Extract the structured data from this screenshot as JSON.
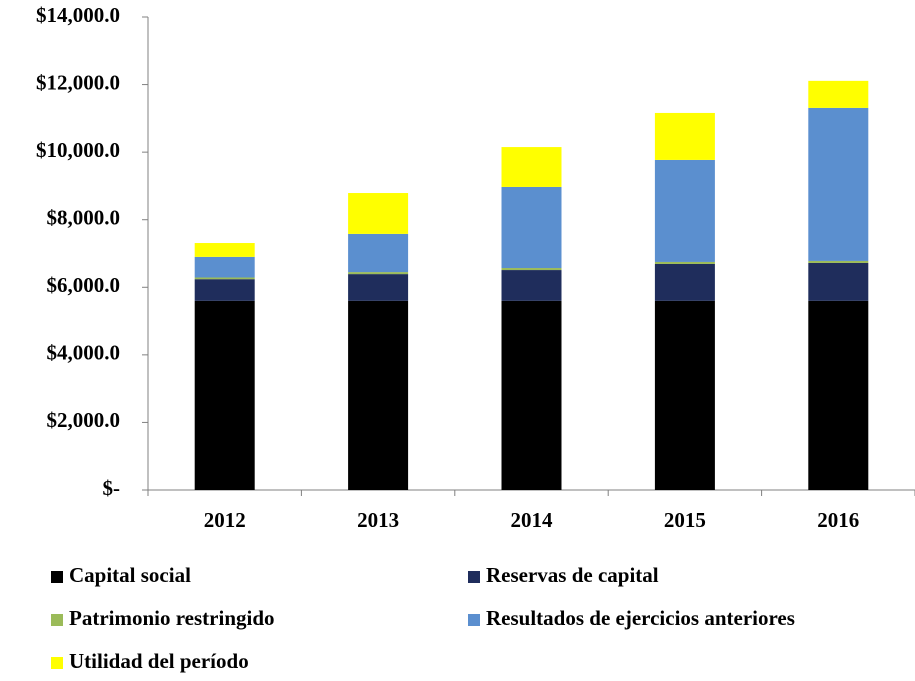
{
  "chart_data": {
    "type": "stacked_bar",
    "categories": [
      "2012",
      "2013",
      "2014",
      "2015",
      "2016"
    ],
    "series": [
      {
        "name": "Capital social",
        "color": "#000000",
        "values": [
          5600,
          5600,
          5600,
          5600,
          5600
        ]
      },
      {
        "name": "Reservas de capital",
        "color": "#1f2d5c",
        "values": [
          640,
          790,
          910,
          1090,
          1120
        ]
      },
      {
        "name": "Patrimonio restringido",
        "color": "#9bbb59",
        "values": [
          50,
          60,
          60,
          60,
          60
        ]
      },
      {
        "name": "Resultados de ejercicios anteriores",
        "color": "#5b8fcf",
        "values": [
          610,
          1130,
          2400,
          3020,
          4530
        ]
      },
      {
        "name": "Utilidad del período",
        "color": "#ffff00",
        "values": [
          410,
          1210,
          1180,
          1390,
          800
        ]
      }
    ],
    "ylim": [
      0,
      14000
    ],
    "yticks": [
      {
        "value": 0,
        "label": "$-"
      },
      {
        "value": 2000,
        "label": "$2,000.0"
      },
      {
        "value": 4000,
        "label": "$4,000.0"
      },
      {
        "value": 6000,
        "label": "$6,000.0"
      },
      {
        "value": 8000,
        "label": "$8,000.0"
      },
      {
        "value": 10000,
        "label": "$10,000.0"
      },
      {
        "value": 12000,
        "label": "$12,000.0"
      },
      {
        "value": 14000,
        "label": "$14,000.0"
      }
    ],
    "legend": "bottom"
  }
}
